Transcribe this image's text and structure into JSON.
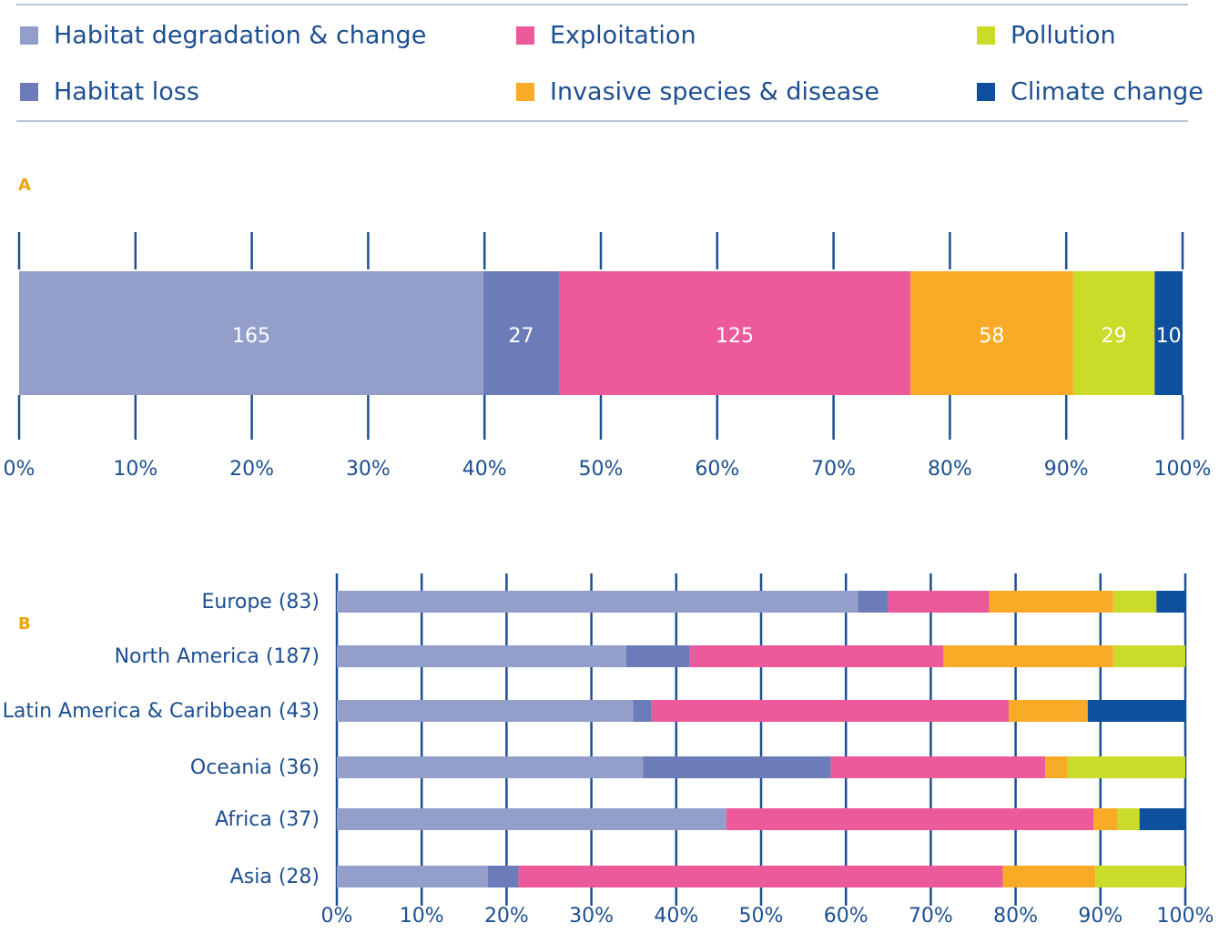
{
  "chart_data": [
    {
      "type": "stacked-bar",
      "title": "A",
      "series": [
        {
          "name": "Habitat degradation & change",
          "color": "#939ecb",
          "values": [
            39.9
          ],
          "value_labels": [
            "165"
          ]
        },
        {
          "name": "Habitat loss",
          "color": "#6c7cb9",
          "values": [
            6.5
          ],
          "value_labels": [
            "27"
          ]
        },
        {
          "name": "Exploitation",
          "color": "#ec5a9b",
          "values": [
            30.2
          ],
          "value_labels": [
            "125"
          ]
        },
        {
          "name": "Invasive species & disease",
          "color": "#f9ab28",
          "values": [
            14.0
          ],
          "value_labels": [
            "58"
          ]
        },
        {
          "name": "Pollution",
          "color": "#cbdb2a",
          "values": [
            7.0
          ],
          "value_labels": [
            "29"
          ]
        },
        {
          "name": "Climate change",
          "color": "#0e4f9e",
          "values": [
            2.4
          ],
          "value_labels": [
            "10"
          ]
        }
      ],
      "xlim": [
        0,
        100
      ],
      "xticks": [
        {
          "value": 0,
          "label": "0%"
        },
        {
          "value": 10,
          "label": "10%"
        },
        {
          "value": 20,
          "label": "20%"
        },
        {
          "value": 30,
          "label": "30%"
        },
        {
          "value": 40,
          "label": "40%"
        },
        {
          "value": 50,
          "label": "50%"
        },
        {
          "value": 60,
          "label": "60%"
        },
        {
          "value": 70,
          "label": "70%"
        },
        {
          "value": 80,
          "label": "80%"
        },
        {
          "value": 90,
          "label": "90%"
        },
        {
          "value": 100,
          "label": "100%"
        }
      ],
      "legend": "top"
    },
    {
      "type": "stacked-barh",
      "title": "B",
      "categories": [
        "Europe (83)",
        "North America (187)",
        "Latin America & Caribbean (43)",
        "Oceania (36)",
        "Africa (37)",
        "Asia (28)"
      ],
      "series": [
        {
          "color": "#939ecb",
          "values": [
            61.4,
            34.1,
            34.9,
            36.1,
            45.9,
            17.8
          ]
        },
        {
          "color": "#6c7cb9",
          "values": [
            3.6,
            7.5,
            2.2,
            22.1,
            0,
            3.6
          ]
        },
        {
          "color": "#ec5a9b",
          "values": [
            11.9,
            29.9,
            42.1,
            25.3,
            43.3,
            57.1
          ]
        },
        {
          "color": "#f9ab28",
          "values": [
            14.6,
            20.0,
            9.3,
            2.6,
            2.8,
            10.9
          ]
        },
        {
          "color": "#cbdb2a",
          "values": [
            5.1,
            8.5,
            0,
            13.9,
            2.6,
            10.6
          ]
        },
        {
          "color": "#0e4f9e",
          "values": [
            3.4,
            0,
            11.5,
            0,
            5.4,
            0
          ]
        }
      ],
      "xlim": [
        0,
        100
      ],
      "xticks": [
        {
          "value": 0,
          "label": "0%"
        },
        {
          "value": 10,
          "label": "10%"
        },
        {
          "value": 20,
          "label": "20%"
        },
        {
          "value": 30,
          "label": "30%"
        },
        {
          "value": 40,
          "label": "40%"
        },
        {
          "value": 50,
          "label": "50%"
        },
        {
          "value": 60,
          "label": "60%"
        },
        {
          "value": 70,
          "label": "70%"
        },
        {
          "value": 80,
          "label": "80%"
        },
        {
          "value": 90,
          "label": "90%"
        },
        {
          "value": 100,
          "label": "100%"
        }
      ]
    }
  ]
}
